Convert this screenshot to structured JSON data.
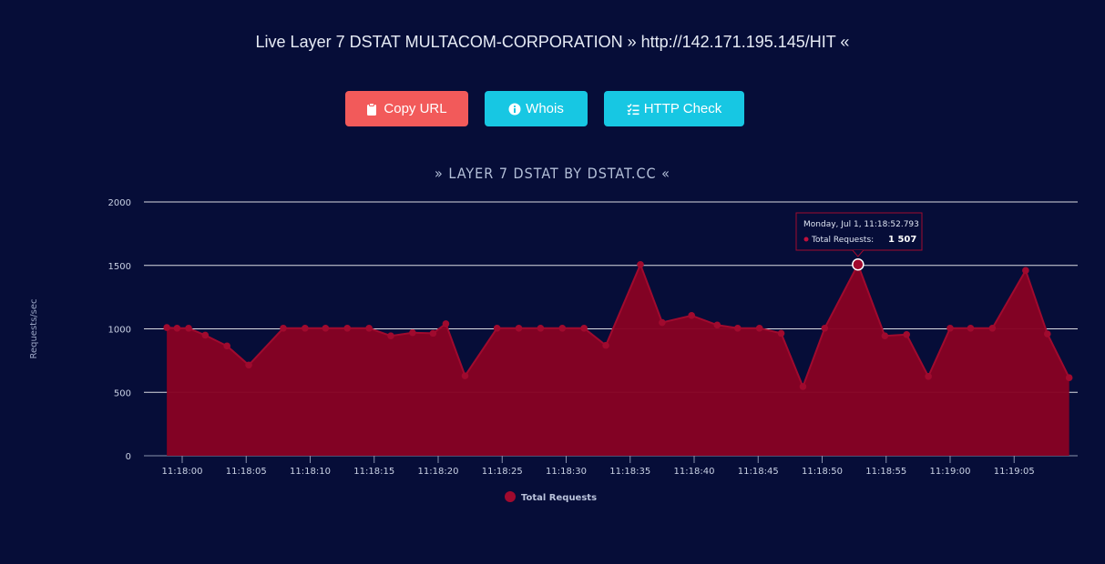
{
  "header": {
    "title": "Live Layer 7 DSTAT MULTACOM-CORPORATION » http://142.171.195.145/HIT «"
  },
  "buttons": {
    "copy_url": "Copy URL",
    "whois": "Whois",
    "http_check": "HTTP Check"
  },
  "icons": {
    "copy_url": "clipboard-icon",
    "whois": "info-circle-icon",
    "http_check": "list-check-icon"
  },
  "colors": {
    "background": "#060d38",
    "copy_button": "#f25a5a",
    "info_button": "#17c7e3",
    "series": "#a00a2e",
    "series_fill": "#860224"
  },
  "tooltip": {
    "date": "Monday, Jul 1, 11:18:52.793",
    "label": "Total Requests:",
    "value": "1 507"
  },
  "chart_data": {
    "type": "area",
    "title": "» LAYER 7 DSTAT BY DSTAT.CC «",
    "ylabel": "Requests/sec",
    "xlabel": "",
    "ylim": [
      0,
      2000
    ],
    "yticks": [
      "0",
      "500",
      "1000",
      "1500",
      "2000"
    ],
    "xticks": [
      "11:18:00",
      "11:18:05",
      "11:18:10",
      "11:18:15",
      "11:18:20",
      "11:18:25",
      "11:18:30",
      "11:18:35",
      "11:18:40",
      "11:18:45",
      "11:18:50",
      "11:18:55",
      "11:19:00",
      "11:19:05"
    ],
    "grid": true,
    "legend_position": "bottom",
    "series": [
      {
        "name": "Total Requests",
        "x": [
          "11:17:58.8",
          "11:17:59.6",
          "11:18:00.5",
          "11:18:01.8",
          "11:18:03.5",
          "11:18:05.2",
          "11:18:07.9",
          "11:18:09.6",
          "11:18:11.2",
          "11:18:12.9",
          "11:18:14.6",
          "11:18:16.3",
          "11:18:18.0",
          "11:18:19.6",
          "11:18:20.6",
          "11:18:22.1",
          "11:18:24.6",
          "11:18:26.3",
          "11:18:28.0",
          "11:18:29.7",
          "11:18:31.4",
          "11:18:33.1",
          "11:18:35.8",
          "11:18:37.5",
          "11:18:39.8",
          "11:18:41.8",
          "11:18:43.4",
          "11:18:45.1",
          "11:18:46.8",
          "11:18:48.5",
          "11:18:50.2",
          "11:18:52.8",
          "11:18:54.9",
          "11:18:56.6",
          "11:18:58.3",
          "11:19:00.0",
          "11:19:01.6",
          "11:19:03.3",
          "11:19:05.9",
          "11:19:07.6",
          "11:19:09.3"
        ],
        "values": [
          1010,
          1005,
          1005,
          950,
          865,
          715,
          1005,
          1005,
          1005,
          1005,
          1005,
          945,
          970,
          965,
          1040,
          630,
          1005,
          1005,
          1005,
          1005,
          1005,
          870,
          1507,
          1050,
          1105,
          1030,
          1005,
          1005,
          965,
          545,
          1005,
          1507,
          945,
          955,
          625,
          1005,
          1005,
          1005,
          1460,
          960,
          615
        ]
      }
    ]
  }
}
